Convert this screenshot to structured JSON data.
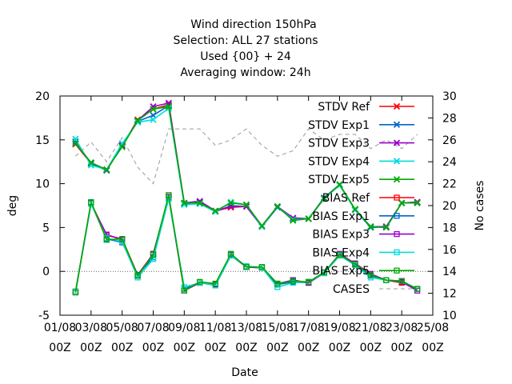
{
  "chart_data": {
    "type": "line",
    "title_lines": [
      "Wind direction 150hPa",
      "Selection: ALL      27 stations",
      "Used {00} + 24",
      "Averaging window: 24h"
    ],
    "xlabel": "Date",
    "ylabel": "deg",
    "y2label": "No cases",
    "ylim": [
      -5,
      20
    ],
    "y2lim": [
      10,
      30
    ],
    "xlim": [
      0,
      24
    ],
    "yticks": [
      "20",
      "15",
      "10",
      "5",
      "0",
      "-5"
    ],
    "y2ticks": [
      "30",
      "28",
      "26",
      "24",
      "22",
      "20",
      "18",
      "16",
      "14",
      "12",
      "10"
    ],
    "xticks": [
      {
        "x": 0,
        "l1": "01/08",
        "l2": "00Z"
      },
      {
        "x": 2,
        "l1": "03/08",
        "l2": "00Z"
      },
      {
        "x": 4,
        "l1": "05/08",
        "l2": "00Z"
      },
      {
        "x": 6,
        "l1": "07/08",
        "l2": "00Z"
      },
      {
        "x": 8,
        "l1": "09/08",
        "l2": "00Z"
      },
      {
        "x": 10,
        "l1": "11/08",
        "l2": "00Z"
      },
      {
        "x": 12,
        "l1": "13/08",
        "l2": "00Z"
      },
      {
        "x": 14,
        "l1": "15/08",
        "l2": "00Z"
      },
      {
        "x": 16,
        "l1": "17/08",
        "l2": "00Z"
      },
      {
        "x": 18,
        "l1": "19/08",
        "l2": "00Z"
      },
      {
        "x": 20,
        "l1": "21/08",
        "l2": "00Z"
      },
      {
        "x": 22,
        "l1": "23/08",
        "l2": "00Z"
      },
      {
        "x": 24,
        "l1": "25/08",
        "l2": "00Z"
      }
    ],
    "x": [
      1,
      2,
      3,
      4,
      5,
      6,
      7,
      8,
      9,
      10,
      11,
      12,
      13,
      14,
      15,
      16,
      17,
      18,
      19,
      20,
      21,
      22,
      23,
      24
    ],
    "series": [
      {
        "name": "STDV Ref",
        "color": "#ff0000",
        "marker": "x",
        "values": [
          14.5,
          12.3,
          11.6,
          14.3,
          17.3,
          18.5,
          19.0,
          7.8,
          7.9,
          6.9,
          7.3,
          7.4,
          5.2,
          7.4,
          6.0,
          6.0,
          8.3,
          9.9,
          7.0,
          5.1,
          5.1,
          7.8,
          7.9,
          null
        ]
      },
      {
        "name": "STDV Exp1",
        "color": "#0066cc",
        "marker": "x",
        "values": [
          14.8,
          12.3,
          11.5,
          14.4,
          17.1,
          17.8,
          18.9,
          7.7,
          7.9,
          6.8,
          7.5,
          7.4,
          5.1,
          7.3,
          6.0,
          6.0,
          8.4,
          9.9,
          7.0,
          5.0,
          5.1,
          7.8,
          7.8,
          null
        ]
      },
      {
        "name": "STDV Exp3",
        "color": "#9900cc",
        "marker": "x",
        "values": [
          14.6,
          12.4,
          11.6,
          14.4,
          17.2,
          18.8,
          19.2,
          7.8,
          8.0,
          6.9,
          7.4,
          7.4,
          5.1,
          7.4,
          6.1,
          6.0,
          8.3,
          9.9,
          7.0,
          5.1,
          5.1,
          7.8,
          7.9,
          null
        ]
      },
      {
        "name": "STDV Exp4",
        "color": "#00dddd",
        "marker": "x",
        "values": [
          15.1,
          12.1,
          11.6,
          14.6,
          17.0,
          17.3,
          18.6,
          7.6,
          7.7,
          6.8,
          7.9,
          7.6,
          5.1,
          7.4,
          5.9,
          6.0,
          8.3,
          9.8,
          7.0,
          5.1,
          5.0,
          7.8,
          7.8,
          null
        ]
      },
      {
        "name": "STDV Exp5",
        "color": "#00aa00",
        "marker": "x",
        "values": [
          14.6,
          12.4,
          11.6,
          14.2,
          17.2,
          18.5,
          18.8,
          7.8,
          7.8,
          6.9,
          7.8,
          7.6,
          5.2,
          7.4,
          5.8,
          6.0,
          8.3,
          9.9,
          7.1,
          5.1,
          5.0,
          7.8,
          7.8,
          null
        ]
      },
      {
        "name": "BIAS Ref",
        "color": "#ff0000",
        "marker": "square",
        "values": [
          -2.3,
          7.8,
          4.1,
          3.7,
          -0.4,
          2.0,
          8.5,
          -2.2,
          -1.3,
          -1.5,
          1.9,
          0.5,
          0.4,
          -1.5,
          -1.0,
          -1.3,
          -0.2,
          1.9,
          0.9,
          -0.3,
          -1.0,
          -1.3,
          -2.0,
          null
        ]
      },
      {
        "name": "BIAS Exp1",
        "color": "#0066cc",
        "marker": "square",
        "values": [
          -2.4,
          7.8,
          3.7,
          3.3,
          -0.4,
          1.6,
          8.3,
          -2.0,
          -1.3,
          -1.6,
          1.8,
          0.5,
          0.4,
          -1.5,
          -1.2,
          -1.3,
          -0.2,
          1.8,
          0.8,
          -0.5,
          -1.0,
          -1.1,
          -2.0,
          null
        ]
      },
      {
        "name": "BIAS Exp3",
        "color": "#9900cc",
        "marker": "square",
        "values": [
          -2.3,
          7.7,
          4.2,
          3.6,
          -0.5,
          2.0,
          8.5,
          -2.2,
          -1.3,
          -1.5,
          1.9,
          0.5,
          0.4,
          -1.4,
          -1.0,
          -1.3,
          -0.2,
          2.0,
          0.9,
          -0.3,
          -1.0,
          -1.2,
          -2.2,
          null
        ]
      },
      {
        "name": "BIAS Exp4",
        "color": "#00dddd",
        "marker": "square",
        "values": [
          -2.3,
          7.7,
          3.8,
          3.4,
          -0.7,
          1.4,
          8.3,
          -1.8,
          -1.3,
          -1.6,
          1.8,
          0.6,
          0.4,
          -1.8,
          -1.3,
          -1.2,
          -0.2,
          1.8,
          0.7,
          -0.7,
          -1.0,
          -1.1,
          -2.0,
          null
        ]
      },
      {
        "name": "BIAS Exp5",
        "color": "#00aa00",
        "marker": "square",
        "values": [
          -2.4,
          7.9,
          3.6,
          3.7,
          -0.5,
          1.9,
          8.7,
          -2.2,
          -1.2,
          -1.4,
          2.0,
          0.5,
          0.5,
          -1.4,
          -1.1,
          -1.2,
          -0.1,
          1.9,
          0.8,
          -0.4,
          -1.0,
          -1.1,
          -2.0,
          null
        ]
      },
      {
        "name": "CASES",
        "color": "#999999",
        "marker": "none",
        "dashed": true,
        "axis": "y2",
        "values": [
          24.5,
          25.8,
          24.0,
          26.2,
          23.5,
          22.0,
          27.0,
          27.0,
          27.0,
          25.5,
          26.0,
          27.0,
          25.5,
          24.5,
          25.0,
          27.0,
          26.0,
          26.5,
          26.5,
          25.2,
          26.0,
          25.2,
          26.5,
          null
        ]
      }
    ]
  }
}
